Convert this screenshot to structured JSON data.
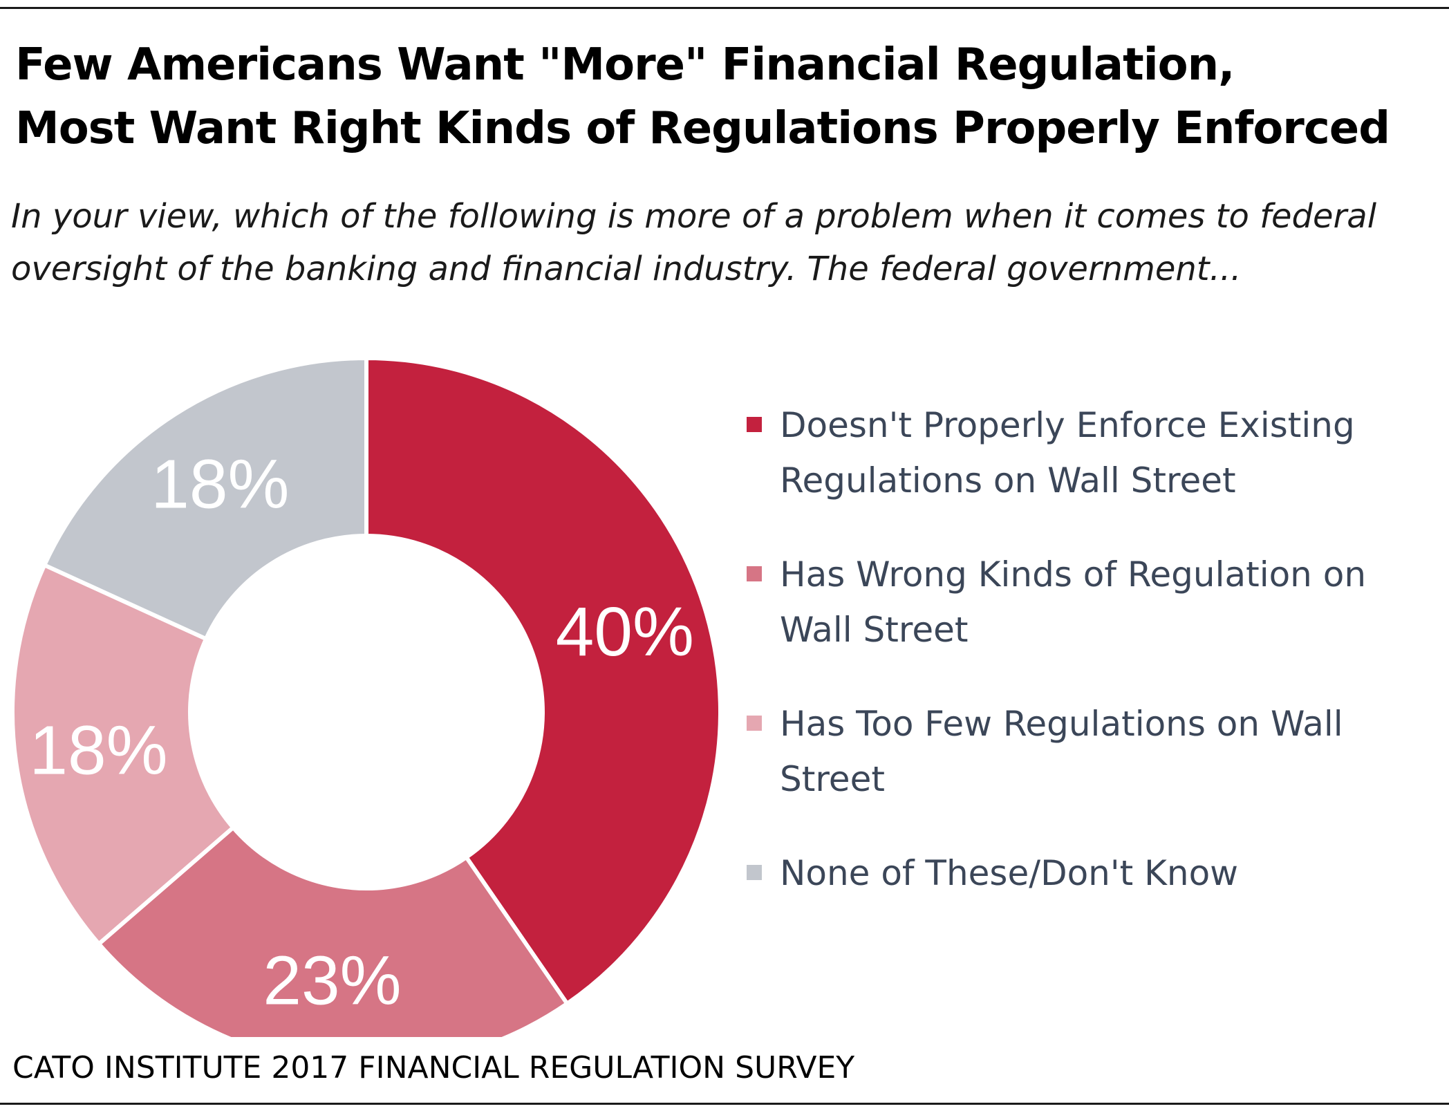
{
  "title": {
    "line1": "Few Americans Want \"More\" Financial Regulation,",
    "line2": "Most Want Right Kinds of Regulations Properly Enforced"
  },
  "subtitle": "In your view, which of the following is more of a problem when it comes to federal\noversight of the banking and financial industry. The federal government...",
  "source": "CATO INSTITUTE 2017 FINANCIAL REGULATION SURVEY",
  "chart_data": {
    "type": "pie",
    "style": "donut",
    "legend_position": "right",
    "series": [
      {
        "label": "Doesn't Properly Enforce Existing Regulations on Wall Street",
        "value": 40,
        "display": "40%",
        "color": "#c3213e",
        "label_color": "#ffffff"
      },
      {
        "label": "Has Wrong Kinds of Regulation on Wall Street",
        "value": 23,
        "display": "23%",
        "color": "#d67585",
        "label_color": "#ffffff"
      },
      {
        "label": "Has Too Few Regulations on Wall Street",
        "value": 18,
        "display": "18%",
        "color": "#e5a7b1",
        "label_color": "#ffffff"
      },
      {
        "label": "None of These/Don't Know",
        "value": 18,
        "display": "18%",
        "color": "#c2c6cd",
        "label_color": "#ffffff"
      }
    ]
  }
}
